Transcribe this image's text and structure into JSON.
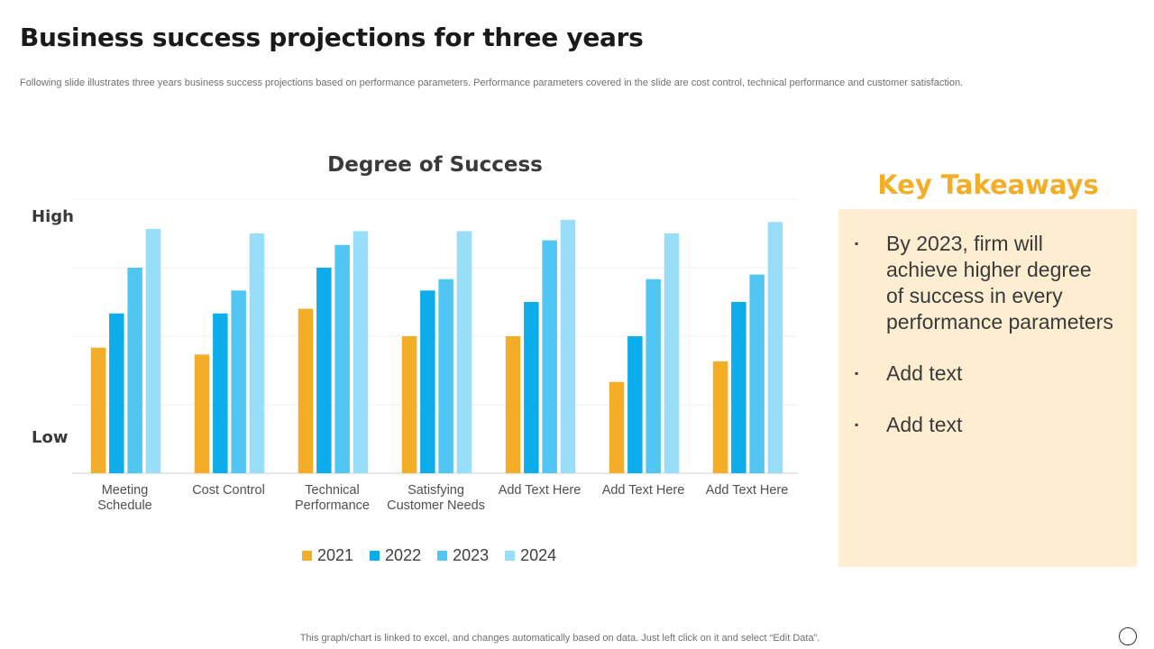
{
  "page": {
    "title": "Business success projections for three years",
    "subtitle": "Following slide illustrates three years business success projections based on performance parameters. Performance parameters covered in the slide are cost control, technical performance and customer satisfaction.",
    "footer": "This graph/chart is linked to excel, and changes automatically based on data. Just left click on it and select “Edit Data”."
  },
  "chart_data": {
    "type": "bar",
    "title": "Degree of Success",
    "xlabel": "",
    "ylabel": "",
    "y_axis_labels": {
      "high": "High",
      "low": "Low"
    },
    "ylim": [
      0,
      12
    ],
    "grid": true,
    "legend_position": "bottom",
    "categories": [
      [
        "Meeting",
        "Schedule"
      ],
      [
        "Cost Control"
      ],
      [
        "Technical",
        "Performance"
      ],
      [
        "Satisfying",
        "Customer Needs"
      ],
      [
        "Add Text Here"
      ],
      [
        "Add Text Here"
      ],
      [
        "Add Text Here"
      ]
    ],
    "series": [
      {
        "name": "2021",
        "color": "#f4ad27",
        "values": [
          5.5,
          5.2,
          7.2,
          6.0,
          6.0,
          4.0,
          4.9
        ]
      },
      {
        "name": "2022",
        "color": "#0cadea",
        "values": [
          7.0,
          7.0,
          9.0,
          8.0,
          7.5,
          6.0,
          7.5
        ]
      },
      {
        "name": "2023",
        "color": "#52c6f2",
        "values": [
          9.0,
          8.0,
          10.0,
          8.5,
          10.2,
          8.5,
          8.7
        ]
      },
      {
        "name": "2024",
        "color": "#99def8",
        "values": [
          10.7,
          10.5,
          10.6,
          10.6,
          11.1,
          10.5,
          11.0
        ]
      }
    ]
  },
  "takeaways": {
    "title": "Key Takeaways",
    "bullet_symbol": "▪",
    "items": [
      "By 2023, firm will achieve higher degree of success in every performance parameters",
      "Add text",
      "Add text"
    ]
  }
}
